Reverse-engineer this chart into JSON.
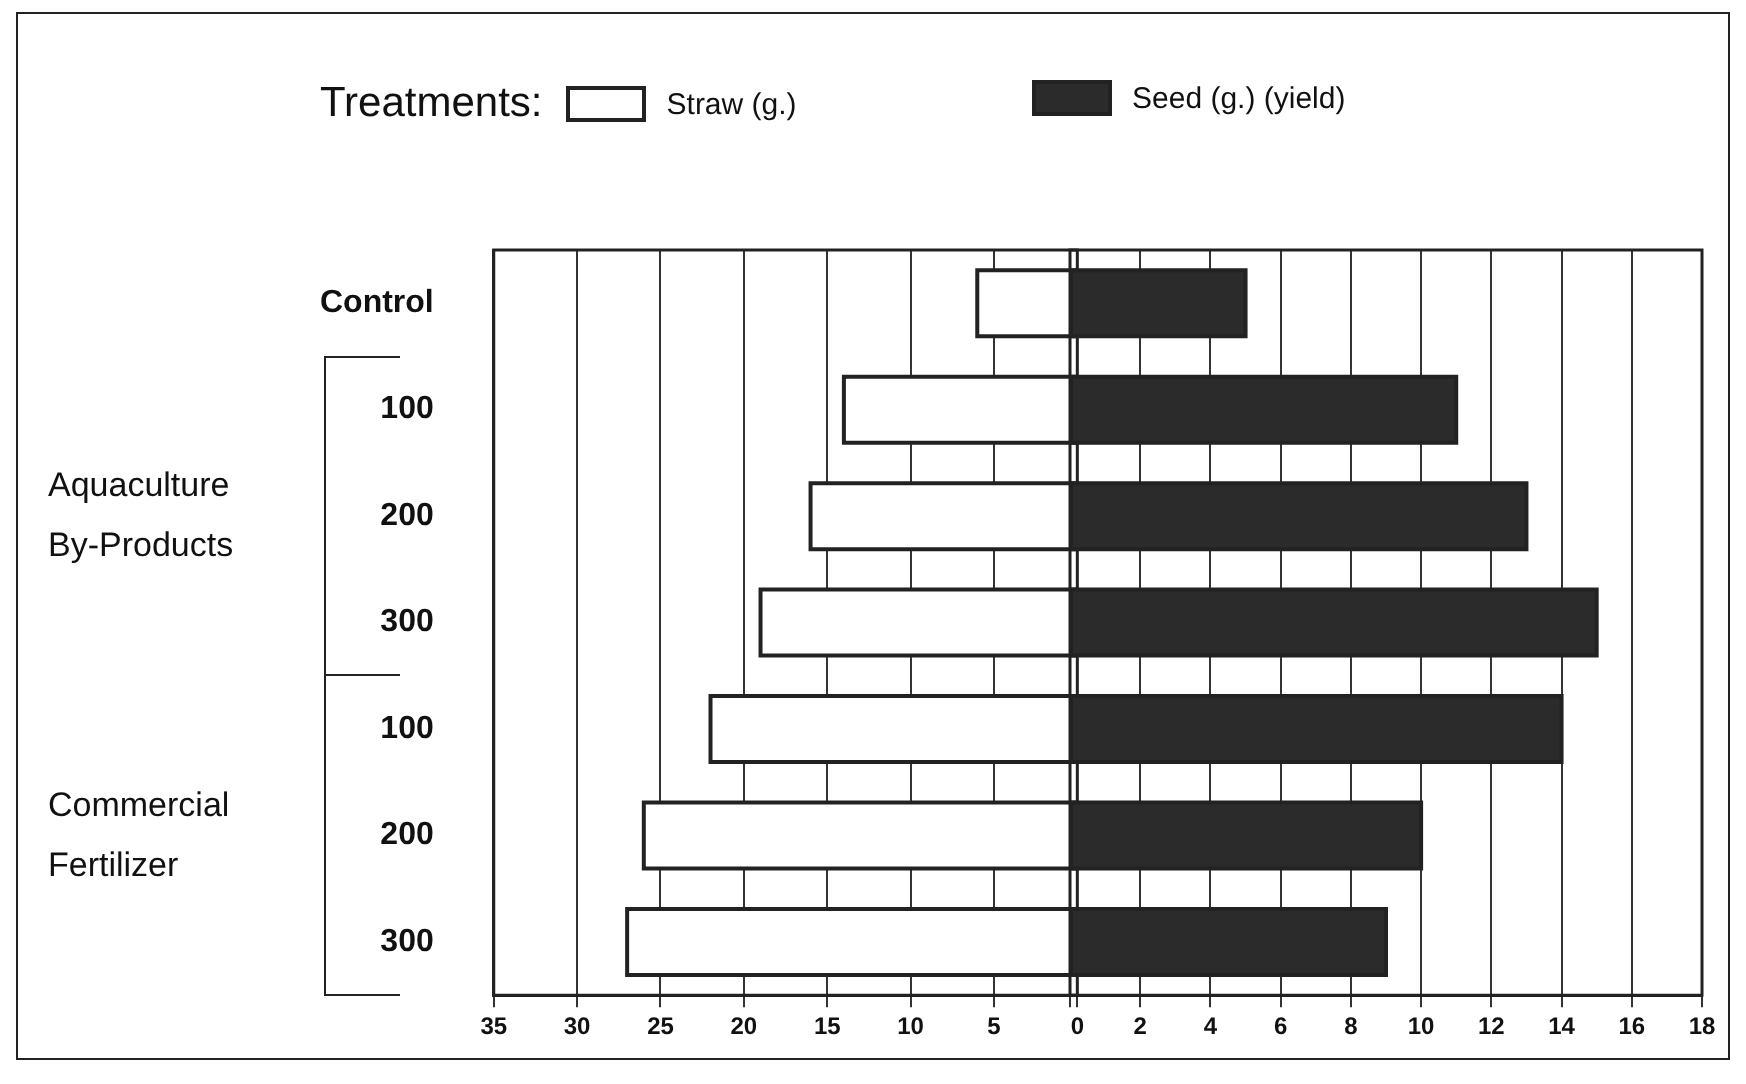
{
  "chart_data": [
    {
      "type": "bar",
      "orientation": "horizontal",
      "legend_title": "Treatments:",
      "legend": "top",
      "categories": [
        "Control",
        "100",
        "200",
        "300",
        "100",
        "200",
        "300"
      ],
      "series": [
        {
          "name": "Straw (g.)",
          "color": "#ffffff",
          "values": [
            6,
            14,
            16,
            19,
            22,
            26,
            27
          ]
        }
      ],
      "xlim": [
        35,
        0
      ],
      "xticks": [
        35,
        30,
        25,
        20,
        15,
        10,
        5,
        0
      ],
      "grid": "x",
      "annotations": [
        "Aquaculture By-Products",
        "Commercial Fertilizer"
      ]
    },
    {
      "type": "bar",
      "orientation": "horizontal",
      "legend": "top",
      "categories": [
        null,
        null,
        null,
        null,
        null,
        null,
        null
      ],
      "series": [
        {
          "name": "Seed (g.) (yield)",
          "color": "#2b2b2b",
          "values": [
            5,
            11,
            13,
            15,
            14,
            10,
            9
          ]
        }
      ],
      "xlim": [
        0,
        18
      ],
      "xticks": [
        {
          "value": 0,
          "label": null
        },
        2,
        4,
        6,
        8,
        10,
        12,
        14,
        16,
        18
      ],
      "grid": "x",
      "tick_labels": "x"
    }
  ]
}
